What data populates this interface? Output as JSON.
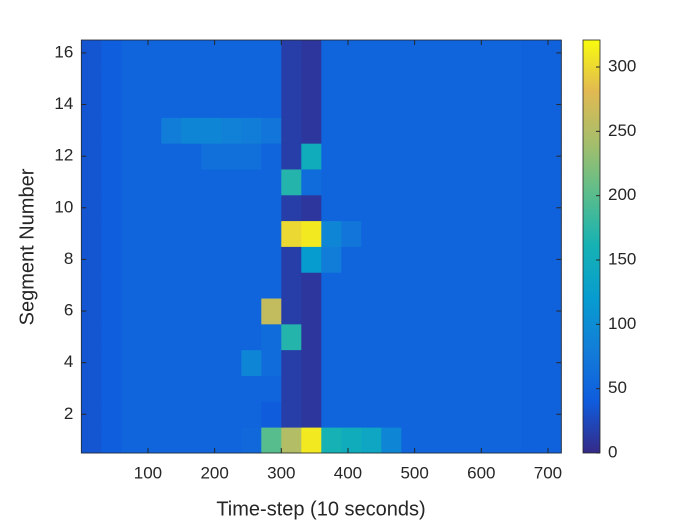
{
  "chart_data": {
    "type": "heatmap",
    "xlabel": "Time-step (10 seconds)",
    "ylabel": "Segment Number",
    "xbins": [
      0,
      30,
      60,
      90,
      120,
      150,
      180,
      210,
      240,
      270,
      300,
      330,
      360,
      390,
      420,
      450,
      480,
      510,
      540,
      570,
      600,
      630,
      660,
      690,
      720
    ],
    "y": [
      1,
      2,
      3,
      4,
      5,
      6,
      7,
      8,
      9,
      10,
      11,
      12,
      13,
      14,
      15,
      16
    ],
    "values": [
      [
        35,
        42,
        50,
        50,
        50,
        50,
        50,
        50,
        55,
        200,
        250,
        310,
        160,
        150,
        140,
        90,
        50,
        50,
        50,
        50,
        50,
        50,
        48,
        48
      ],
      [
        35,
        42,
        50,
        50,
        50,
        50,
        50,
        50,
        50,
        40,
        15,
        10,
        50,
        50,
        50,
        50,
        50,
        50,
        50,
        50,
        50,
        50,
        48,
        48
      ],
      [
        35,
        42,
        50,
        50,
        50,
        50,
        50,
        50,
        50,
        50,
        15,
        10,
        50,
        50,
        50,
        50,
        50,
        50,
        50,
        50,
        50,
        50,
        48,
        48
      ],
      [
        35,
        42,
        50,
        50,
        50,
        50,
        50,
        50,
        90,
        60,
        15,
        10,
        50,
        50,
        50,
        50,
        50,
        50,
        50,
        50,
        50,
        50,
        48,
        48
      ],
      [
        35,
        42,
        50,
        50,
        50,
        50,
        50,
        50,
        50,
        60,
        170,
        10,
        50,
        50,
        50,
        50,
        50,
        50,
        50,
        50,
        50,
        50,
        48,
        48
      ],
      [
        35,
        42,
        50,
        50,
        50,
        50,
        50,
        50,
        50,
        260,
        15,
        10,
        50,
        50,
        50,
        50,
        50,
        50,
        50,
        50,
        50,
        50,
        48,
        48
      ],
      [
        35,
        42,
        50,
        50,
        50,
        50,
        50,
        50,
        50,
        50,
        15,
        10,
        50,
        50,
        50,
        50,
        50,
        50,
        50,
        50,
        50,
        50,
        48,
        48
      ],
      [
        35,
        42,
        50,
        50,
        50,
        50,
        50,
        50,
        50,
        50,
        15,
        120,
        80,
        50,
        50,
        50,
        50,
        50,
        50,
        50,
        50,
        50,
        48,
        48
      ],
      [
        35,
        42,
        50,
        50,
        50,
        50,
        50,
        50,
        50,
        50,
        300,
        310,
        90,
        70,
        50,
        50,
        50,
        50,
        50,
        50,
        50,
        50,
        48,
        48
      ],
      [
        35,
        42,
        50,
        50,
        50,
        50,
        50,
        50,
        50,
        50,
        15,
        10,
        50,
        50,
        50,
        50,
        50,
        50,
        50,
        50,
        50,
        50,
        48,
        48
      ],
      [
        35,
        42,
        50,
        50,
        50,
        50,
        50,
        50,
        50,
        50,
        170,
        60,
        50,
        50,
        50,
        50,
        50,
        50,
        50,
        50,
        50,
        50,
        48,
        48
      ],
      [
        35,
        42,
        50,
        50,
        50,
        50,
        65,
        65,
        65,
        50,
        15,
        150,
        50,
        50,
        50,
        50,
        50,
        50,
        50,
        50,
        50,
        50,
        48,
        48
      ],
      [
        35,
        42,
        50,
        50,
        80,
        90,
        90,
        85,
        80,
        70,
        15,
        10,
        50,
        50,
        50,
        50,
        50,
        50,
        50,
        50,
        50,
        50,
        48,
        48
      ],
      [
        35,
        42,
        50,
        50,
        50,
        50,
        50,
        50,
        50,
        50,
        15,
        10,
        50,
        50,
        50,
        50,
        50,
        50,
        50,
        50,
        50,
        50,
        48,
        48
      ],
      [
        35,
        42,
        50,
        50,
        50,
        50,
        50,
        50,
        50,
        50,
        15,
        10,
        50,
        50,
        50,
        50,
        50,
        50,
        50,
        50,
        50,
        50,
        48,
        48
      ],
      [
        35,
        42,
        50,
        50,
        50,
        50,
        50,
        50,
        50,
        50,
        15,
        10,
        50,
        50,
        50,
        50,
        50,
        50,
        50,
        50,
        50,
        50,
        48,
        48
      ]
    ],
    "xlim": [
      0,
      720
    ],
    "xticks": [
      100,
      200,
      300,
      400,
      500,
      600,
      700
    ],
    "ylim": [
      0.5,
      16.5
    ],
    "yticks": [
      2,
      4,
      6,
      8,
      10,
      12,
      14,
      16
    ],
    "colormap": "parula",
    "colorbar": {
      "lim": [
        0,
        321
      ],
      "ticks": [
        0,
        50,
        100,
        150,
        200,
        250,
        300
      ]
    }
  }
}
